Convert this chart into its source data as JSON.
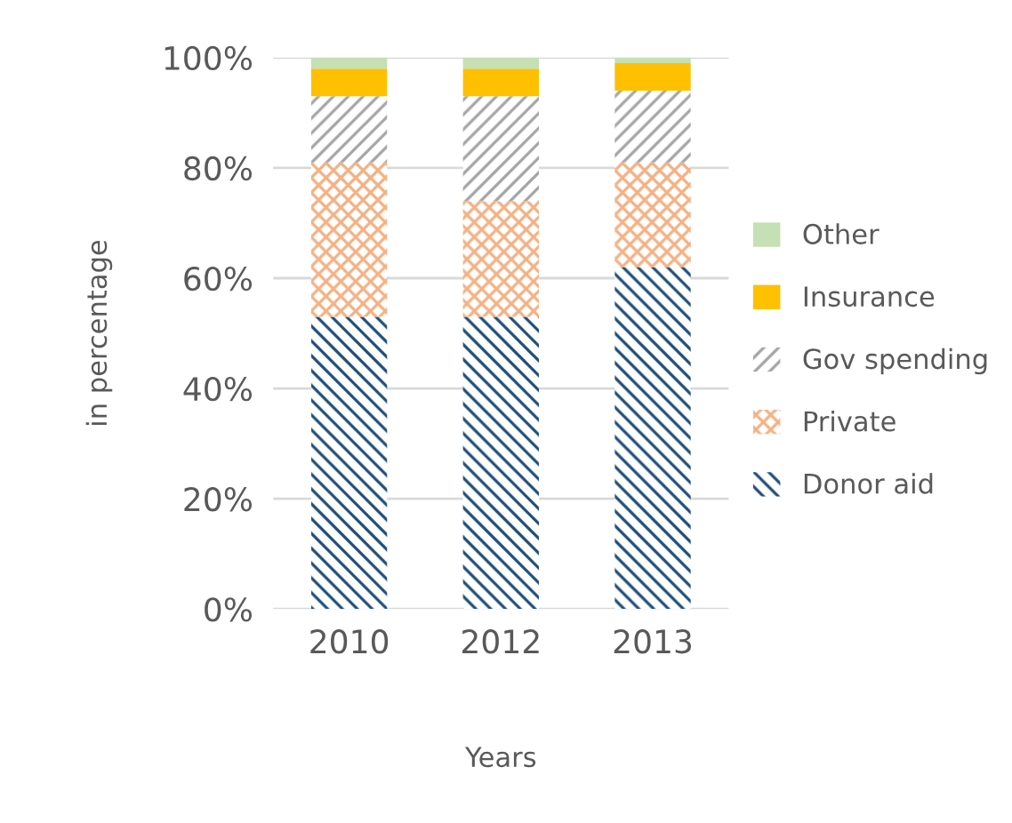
{
  "chart_data": {
    "type": "bar",
    "stacked": true,
    "xlabel": "Years",
    "ylabel": "in percentage",
    "categories": [
      "2010",
      "2012",
      "2013"
    ],
    "series": [
      {
        "name": "Donor aid",
        "color": "#1f4e79",
        "values": [
          53,
          53,
          62
        ]
      },
      {
        "name": "Private",
        "color": "#f4b183",
        "values": [
          28,
          21,
          19
        ]
      },
      {
        "name": "Gov spending",
        "color": "#a5a5a5",
        "values": [
          12,
          19,
          13
        ]
      },
      {
        "name": "Insurance",
        "color": "#ffc000",
        "values": [
          5,
          5,
          5
        ]
      },
      {
        "name": "Other",
        "color": "#c5e0b4",
        "values": [
          2,
          2,
          1
        ]
      }
    ],
    "ylim": [
      0,
      100
    ],
    "yticks": [
      {
        "value": 0,
        "label": "0%"
      },
      {
        "value": 20,
        "label": "20%"
      },
      {
        "value": 40,
        "label": "40%"
      },
      {
        "value": 60,
        "label": "60%"
      },
      {
        "value": 80,
        "label": "80%"
      },
      {
        "value": 100,
        "label": "100%"
      }
    ],
    "grid": "y",
    "legend": "right"
  }
}
